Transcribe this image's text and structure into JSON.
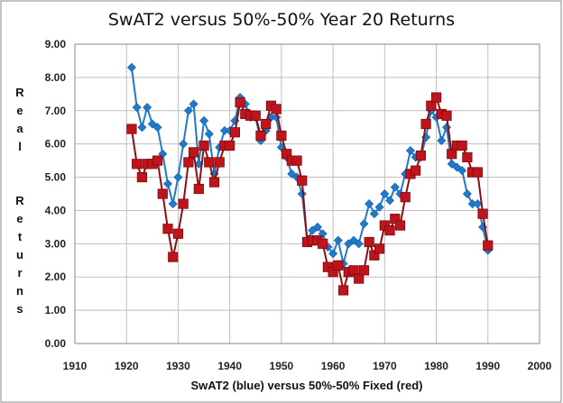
{
  "chart_data": {
    "type": "line",
    "title": "SwAT2 versus 50%-50% Year 20 Returns",
    "xlabel": "SwAT2 (blue) versus 50%-50% Fixed (red)",
    "ylabel": "Real Returns",
    "xlim": [
      1910,
      2000
    ],
    "ylim": [
      0,
      9
    ],
    "x_ticks": [
      "1910",
      "1920",
      "1930",
      "1940",
      "1950",
      "1960",
      "1970",
      "1980",
      "1990",
      "2000"
    ],
    "y_ticks": [
      "0.00",
      "1.00",
      "2.00",
      "3.00",
      "4.00",
      "5.00",
      "6.00",
      "7.00",
      "8.00",
      "9.00"
    ],
    "grid": true,
    "colors": {
      "blue": "#1F7ACC",
      "red": "#C0141C",
      "red_line": "#8B0E12",
      "grid": "#bfbfbf"
    },
    "x": [
      1921,
      1922,
      1923,
      1924,
      1925,
      1926,
      1927,
      1928,
      1929,
      1930,
      1931,
      1932,
      1933,
      1934,
      1935,
      1936,
      1937,
      1938,
      1939,
      1940,
      1941,
      1942,
      1943,
      1944,
      1945,
      1946,
      1947,
      1948,
      1949,
      1950,
      1951,
      1952,
      1953,
      1954,
      1955,
      1956,
      1957,
      1958,
      1959,
      1960,
      1961,
      1962,
      1963,
      1964,
      1965,
      1966,
      1967,
      1968,
      1969,
      1970,
      1971,
      1972,
      1973,
      1974,
      1975,
      1976,
      1977,
      1978,
      1979,
      1980,
      1981,
      1982,
      1983,
      1984,
      1985,
      1986,
      1987,
      1988,
      1989,
      1990
    ],
    "series": [
      {
        "name": "SwAT2",
        "marker": "diamond",
        "values": [
          8.3,
          7.1,
          6.5,
          7.1,
          6.6,
          6.5,
          5.7,
          4.8,
          4.2,
          5.0,
          6.0,
          7.0,
          7.2,
          5.4,
          6.7,
          6.3,
          5.1,
          5.9,
          6.4,
          6.4,
          6.7,
          7.4,
          7.2,
          6.8,
          6.8,
          6.1,
          6.4,
          6.8,
          6.8,
          5.9,
          5.6,
          5.1,
          5.0,
          4.5,
          3.1,
          3.4,
          3.5,
          3.3,
          2.9,
          2.7,
          3.1,
          2.4,
          3.0,
          3.1,
          3.0,
          3.6,
          4.2,
          3.9,
          4.1,
          4.5,
          4.3,
          4.7,
          4.5,
          5.1,
          5.8,
          5.6,
          5.6,
          6.2,
          7.0,
          6.8,
          6.1,
          6.5,
          5.4,
          5.3,
          5.2,
          4.5,
          4.2,
          4.2,
          3.5,
          2.8
        ]
      },
      {
        "name": "50%-50% Fixed",
        "marker": "square",
        "values": [
          6.45,
          5.4,
          5.0,
          5.4,
          5.4,
          5.5,
          4.5,
          3.45,
          2.6,
          3.3,
          4.2,
          5.45,
          5.75,
          4.65,
          5.95,
          5.45,
          4.85,
          5.45,
          5.95,
          5.95,
          6.35,
          7.25,
          6.9,
          6.85,
          6.85,
          6.25,
          6.6,
          7.15,
          7.05,
          6.25,
          5.7,
          5.5,
          5.5,
          4.9,
          3.05,
          3.1,
          3.1,
          3.0,
          2.3,
          2.15,
          2.35,
          1.6,
          2.15,
          2.2,
          1.95,
          2.2,
          3.05,
          2.65,
          2.85,
          3.55,
          3.4,
          3.75,
          3.55,
          4.4,
          5.1,
          5.2,
          5.65,
          6.6,
          7.15,
          7.4,
          6.9,
          6.85,
          5.7,
          5.95,
          5.95,
          5.6,
          5.15,
          5.15,
          3.9,
          2.95
        ]
      }
    ]
  }
}
